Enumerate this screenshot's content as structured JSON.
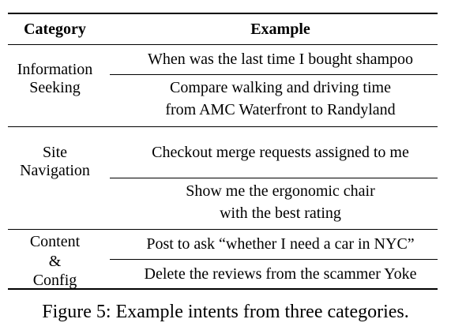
{
  "table": {
    "headers": {
      "category": "Category",
      "example": "Example"
    },
    "groups": [
      {
        "category_lines": [
          "Information",
          "Seeking"
        ],
        "examples": [
          [
            "When was the last time I bought shampoo"
          ],
          [
            "Compare walking and driving time",
            "from AMC Waterfront to Randyland"
          ]
        ]
      },
      {
        "category_lines": [
          "Site",
          "Navigation"
        ],
        "examples": [
          [
            "Checkout merge requests assigned to me"
          ],
          [
            "Show me the ergonomic chair",
            "with the best rating"
          ]
        ]
      },
      {
        "category_lines": [
          "Content",
          "&",
          "Config"
        ],
        "examples": [
          [
            "Post to ask “whether I need a car in NYC”"
          ],
          [
            "Delete the reviews from the scammer Yoke"
          ]
        ]
      }
    ]
  },
  "caption": "Figure 5: Example intents from three categories."
}
